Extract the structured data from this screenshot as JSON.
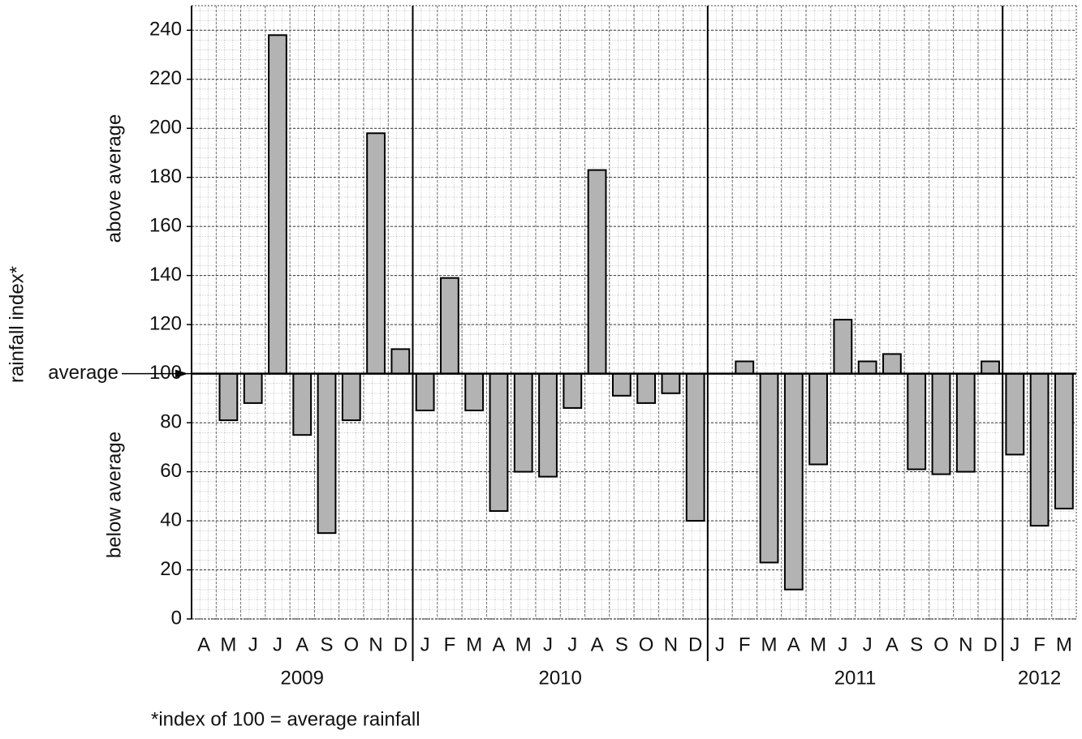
{
  "chart_data": {
    "type": "bar",
    "y_label": "rainfall index*",
    "above_label": "above average",
    "below_label": "below average",
    "baseline_label": "average",
    "footnote": "*index of 100 = average rainfall",
    "baseline": 100,
    "color": "#b3b3b3",
    "ylim": [
      0,
      250
    ],
    "yticks": [
      0,
      20,
      40,
      60,
      80,
      100,
      120,
      140,
      160,
      180,
      200,
      220,
      240
    ],
    "grid": true,
    "groups": [
      {
        "name": "2009",
        "categories": [
          "A",
          "M",
          "J",
          "J",
          "A",
          "S",
          "O",
          "N",
          "D"
        ],
        "values": [
          100,
          81,
          88,
          238,
          75,
          35,
          81,
          198,
          110
        ]
      },
      {
        "name": "2010",
        "categories": [
          "J",
          "F",
          "M",
          "A",
          "M",
          "J",
          "J",
          "A",
          "S",
          "O",
          "N",
          "D"
        ],
        "values": [
          85,
          139,
          85,
          44,
          60,
          58,
          86,
          183,
          91,
          88,
          92,
          40
        ]
      },
      {
        "name": "2011",
        "categories": [
          "J",
          "F",
          "M",
          "A",
          "M",
          "J",
          "J",
          "A",
          "S",
          "O",
          "N",
          "D"
        ],
        "values": [
          100,
          105,
          23,
          12,
          63,
          122,
          105,
          108,
          61,
          59,
          60,
          105
        ]
      },
      {
        "name": "2012",
        "categories": [
          "J",
          "F",
          "M"
        ],
        "values": [
          67,
          38,
          45
        ]
      }
    ]
  }
}
